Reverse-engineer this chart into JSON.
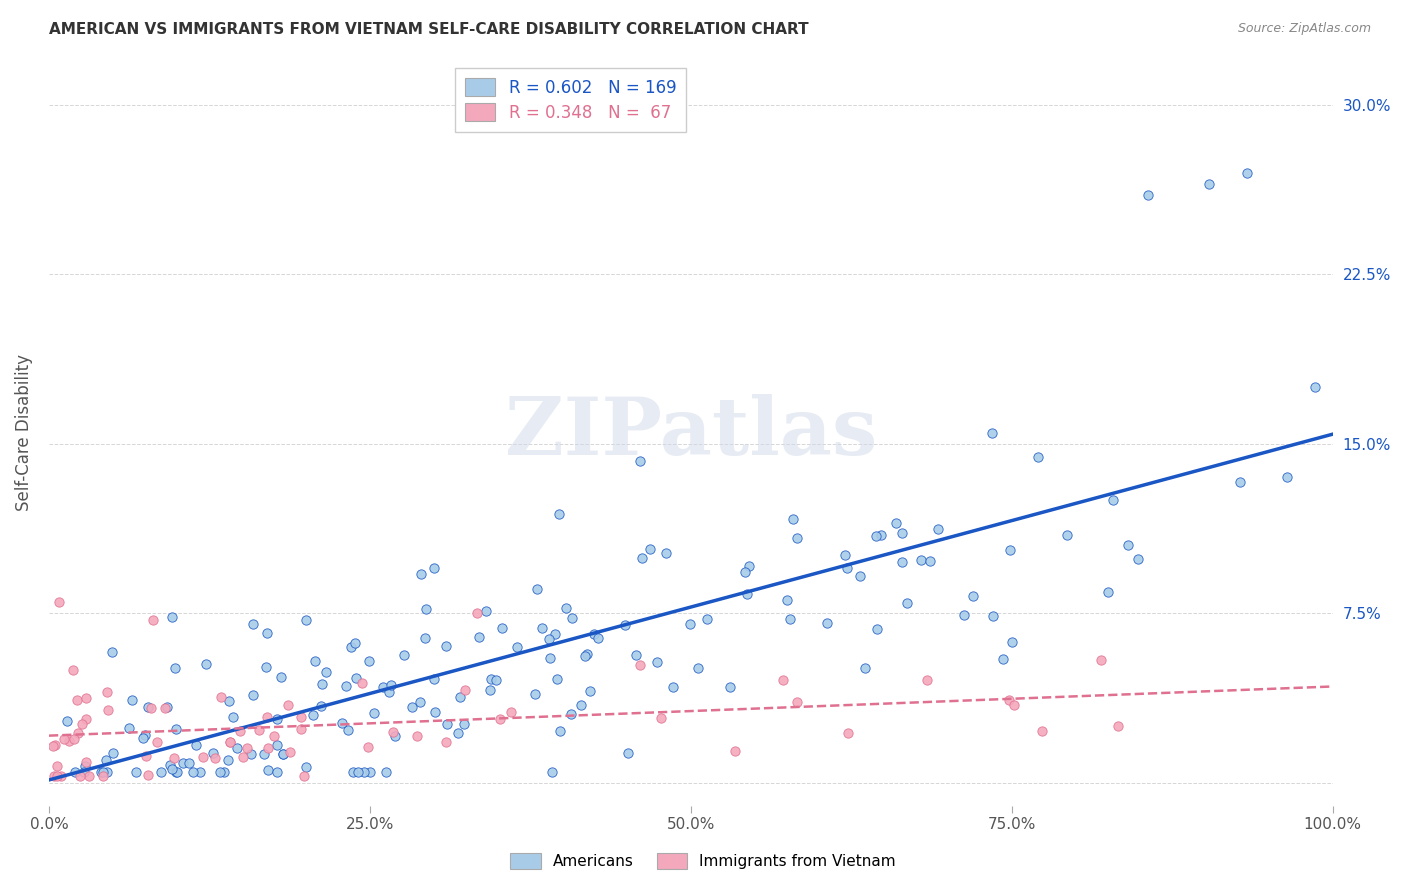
{
  "title": "AMERICAN VS IMMIGRANTS FROM VIETNAM SELF-CARE DISABILITY CORRELATION CHART",
  "source": "Source: ZipAtlas.com",
  "ylabel": "Self-Care Disability",
  "xlim": [
    0,
    1.0
  ],
  "ylim": [
    -0.01,
    0.32
  ],
  "xticks": [
    0.0,
    0.25,
    0.5,
    0.75,
    1.0
  ],
  "xticklabels": [
    "0.0%",
    "25.0%",
    "50.0%",
    "75.0%",
    "100.0%"
  ],
  "ytick_positions": [
    0.0,
    0.075,
    0.15,
    0.225,
    0.3
  ],
  "ytick_labels": [
    "",
    "7.5%",
    "15.0%",
    "22.5%",
    "30.0%"
  ],
  "legend_labels": [
    "Americans",
    "Immigrants from Vietnam"
  ],
  "blue_color": "#a8cce8",
  "pink_color": "#f4a8bc",
  "blue_line_color": "#1a56c4",
  "pink_line_color": "#e07090",
  "watermark": "ZIPatlas",
  "r_blue": 0.602,
  "n_blue": 169,
  "r_pink": 0.348,
  "n_pink": 67,
  "legend_r_color": "#1a56c4",
  "grid_color": "#cccccc",
  "background_color": "#ffffff",
  "title_color": "#333333",
  "axis_color": "#555555"
}
